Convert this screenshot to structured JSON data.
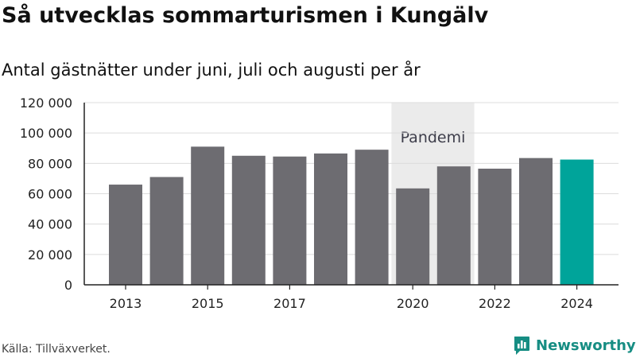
{
  "title": "Så utvecklas sommarturismen i Kungälv",
  "subtitle": "Antal gästnätter under juni, juli och augusti per år",
  "source": "Källa: Tillväxverket.",
  "brand": "Newsworthy",
  "colors": {
    "bar": "#6d6c71",
    "highlight": "#00a49a",
    "band": "#ebebeb",
    "brand": "#168d83"
  },
  "chart_data": {
    "type": "bar",
    "categories": [
      "2013",
      "2014",
      "2015",
      "2016",
      "2017",
      "2018",
      "2019",
      "2020",
      "2021",
      "2022",
      "2023",
      "2024"
    ],
    "values": [
      66000,
      71000,
      91000,
      85000,
      84500,
      86500,
      89000,
      63500,
      78000,
      76500,
      83500,
      82500
    ],
    "highlight": "2024",
    "xticks": [
      "2013",
      "2015",
      "2017",
      "2020",
      "2022",
      "2024"
    ],
    "yticks": [
      0,
      20000,
      40000,
      60000,
      80000,
      100000,
      120000
    ],
    "ytick_labels": [
      "0",
      "20 000",
      "40 000",
      "60 000",
      "80 000",
      "100 000",
      "120 000"
    ],
    "ylim": [
      0,
      120000
    ],
    "grid": true,
    "annotation": {
      "label": "Pandemi",
      "from": "2020",
      "to": "2021"
    }
  }
}
